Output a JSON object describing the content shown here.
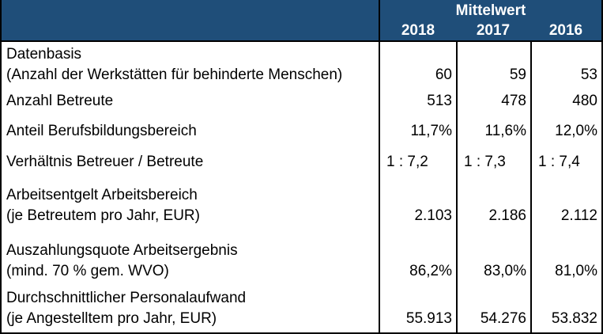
{
  "colors": {
    "header_bg": "#1F4E79",
    "header_text": "#FFFFFF",
    "body_text": "#000000",
    "border": "#000000"
  },
  "table": {
    "header": {
      "group_label": "Mittelwert",
      "years": [
        "2018",
        "2017",
        "2016"
      ]
    },
    "rows": [
      {
        "label": "Datenbasis\n(Anzahl der Werkstätten für behinderte Menschen)",
        "values": [
          "60",
          "59",
          "53"
        ]
      },
      {
        "label": "Anzahl Betreute",
        "values": [
          "513",
          "478",
          "480"
        ]
      },
      {
        "label": "Anteil Berufsbildungsbereich",
        "values": [
          "11,7%",
          "11,6%",
          "12,0%"
        ]
      },
      {
        "label": "Verhältnis Betreuer / Betreute",
        "values": [
          "1 : 7,2",
          "1 : 7,3",
          "1 : 7,4"
        ]
      },
      {
        "label": "Arbeitsentgelt Arbeitsbereich\n(je Betreutem pro Jahr, EUR)",
        "values": [
          "2.103",
          "2.186",
          "2.112"
        ]
      },
      {
        "label": "Auszahlungsquote Arbeitsergebnis\n(mind. 70 % gem. WVO)",
        "values": [
          "86,2%",
          "83,0%",
          "81,0%"
        ]
      },
      {
        "label": "Durchschnittlicher Personalaufwand\n(je Angestelltem pro Jahr, EUR)",
        "values": [
          "55.913",
          "54.276",
          "53.832"
        ]
      }
    ]
  },
  "chart_data": {
    "type": "table",
    "title": "Mittelwert",
    "columns": [
      "",
      "2018",
      "2017",
      "2016"
    ],
    "rows": [
      [
        "Datenbasis (Anzahl der Werkstätten für behinderte Menschen)",
        "60",
        "59",
        "53"
      ],
      [
        "Anzahl Betreute",
        "513",
        "478",
        "480"
      ],
      [
        "Anteil Berufsbildungsbereich",
        "11,7%",
        "11,6%",
        "12,0%"
      ],
      [
        "Verhältnis Betreuer / Betreute",
        "1 : 7,2",
        "1 : 7,3",
        "1 : 7,4"
      ],
      [
        "Arbeitsentgelt Arbeitsbereich (je Betreutem pro Jahr, EUR)",
        "2.103",
        "2.186",
        "2.112"
      ],
      [
        "Auszahlungsquote Arbeitsergebnis (mind. 70 % gem. WVO)",
        "86,2%",
        "83,0%",
        "81,0%"
      ],
      [
        "Durchschnittlicher Personalaufwand (je Angestelltem pro Jahr, EUR)",
        "55.913",
        "54.276",
        "53.832"
      ]
    ]
  }
}
